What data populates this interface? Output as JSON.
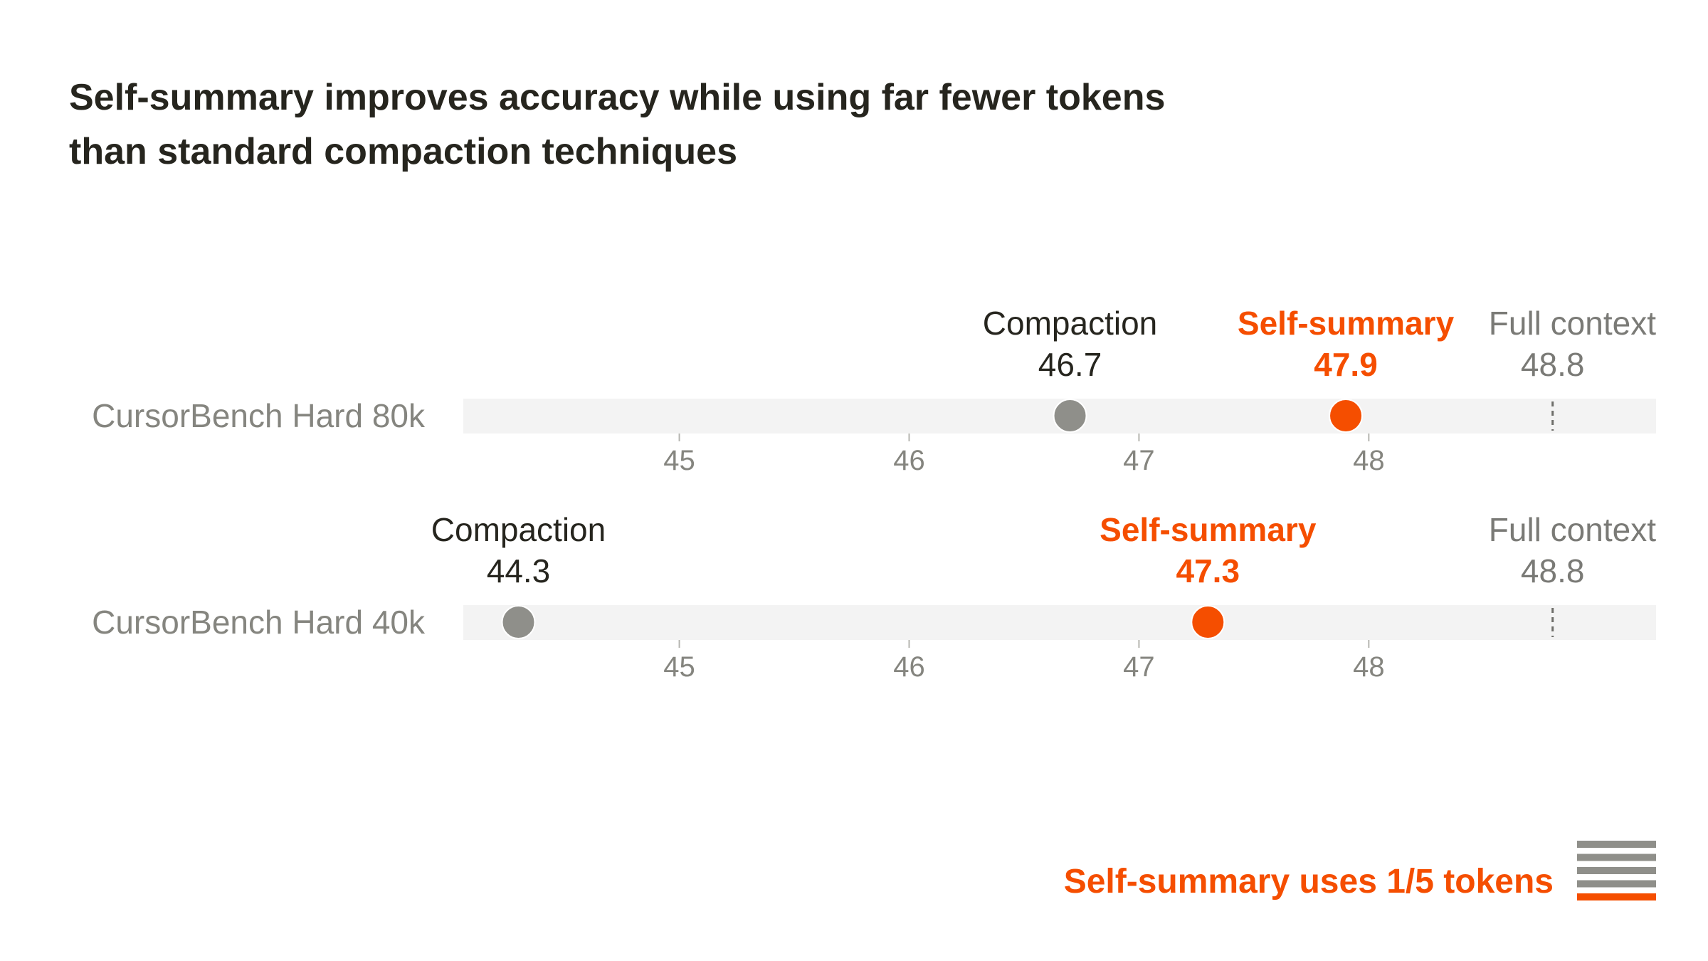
{
  "chart_data": {
    "type": "dot",
    "title": "Self-summary improves accuracy while using far fewer tokens than standard compaction techniques",
    "title_lines": [
      "Self-summary improves accuracy while using far fewer tokens",
      "than standard compaction techniques"
    ],
    "xlim": [
      44.06,
      49.25
    ],
    "xticks": [
      45,
      46,
      47,
      48
    ],
    "grid": false,
    "colors": {
      "compaction": "#8f8f8a",
      "self_summary": "#f54e00",
      "full_context": "#7a7a76",
      "track": "#f3f3f3",
      "text": "#26251e"
    },
    "rows": [
      {
        "label": "CursorBench Hard 80k",
        "series": [
          {
            "name": "Compaction",
            "value": 46.7,
            "value_label": "46.7"
          },
          {
            "name": "Self-summary",
            "value": 47.9,
            "value_label": "47.9"
          },
          {
            "name": "Full context",
            "value": 48.8,
            "value_label": "48.8"
          }
        ]
      },
      {
        "label": "CursorBench Hard 40k",
        "series": [
          {
            "name": "Compaction",
            "value": 44.3,
            "value_label": "44.3"
          },
          {
            "name": "Self-summary",
            "value": 47.3,
            "value_label": "47.3"
          },
          {
            "name": "Full context",
            "value": 48.8,
            "value_label": "48.8"
          }
        ]
      }
    ],
    "legend": {
      "text": "Self-summary uses 1/5 tokens",
      "bars_total": 5,
      "bars_highlighted": 1,
      "placement": "bottom-right"
    }
  }
}
